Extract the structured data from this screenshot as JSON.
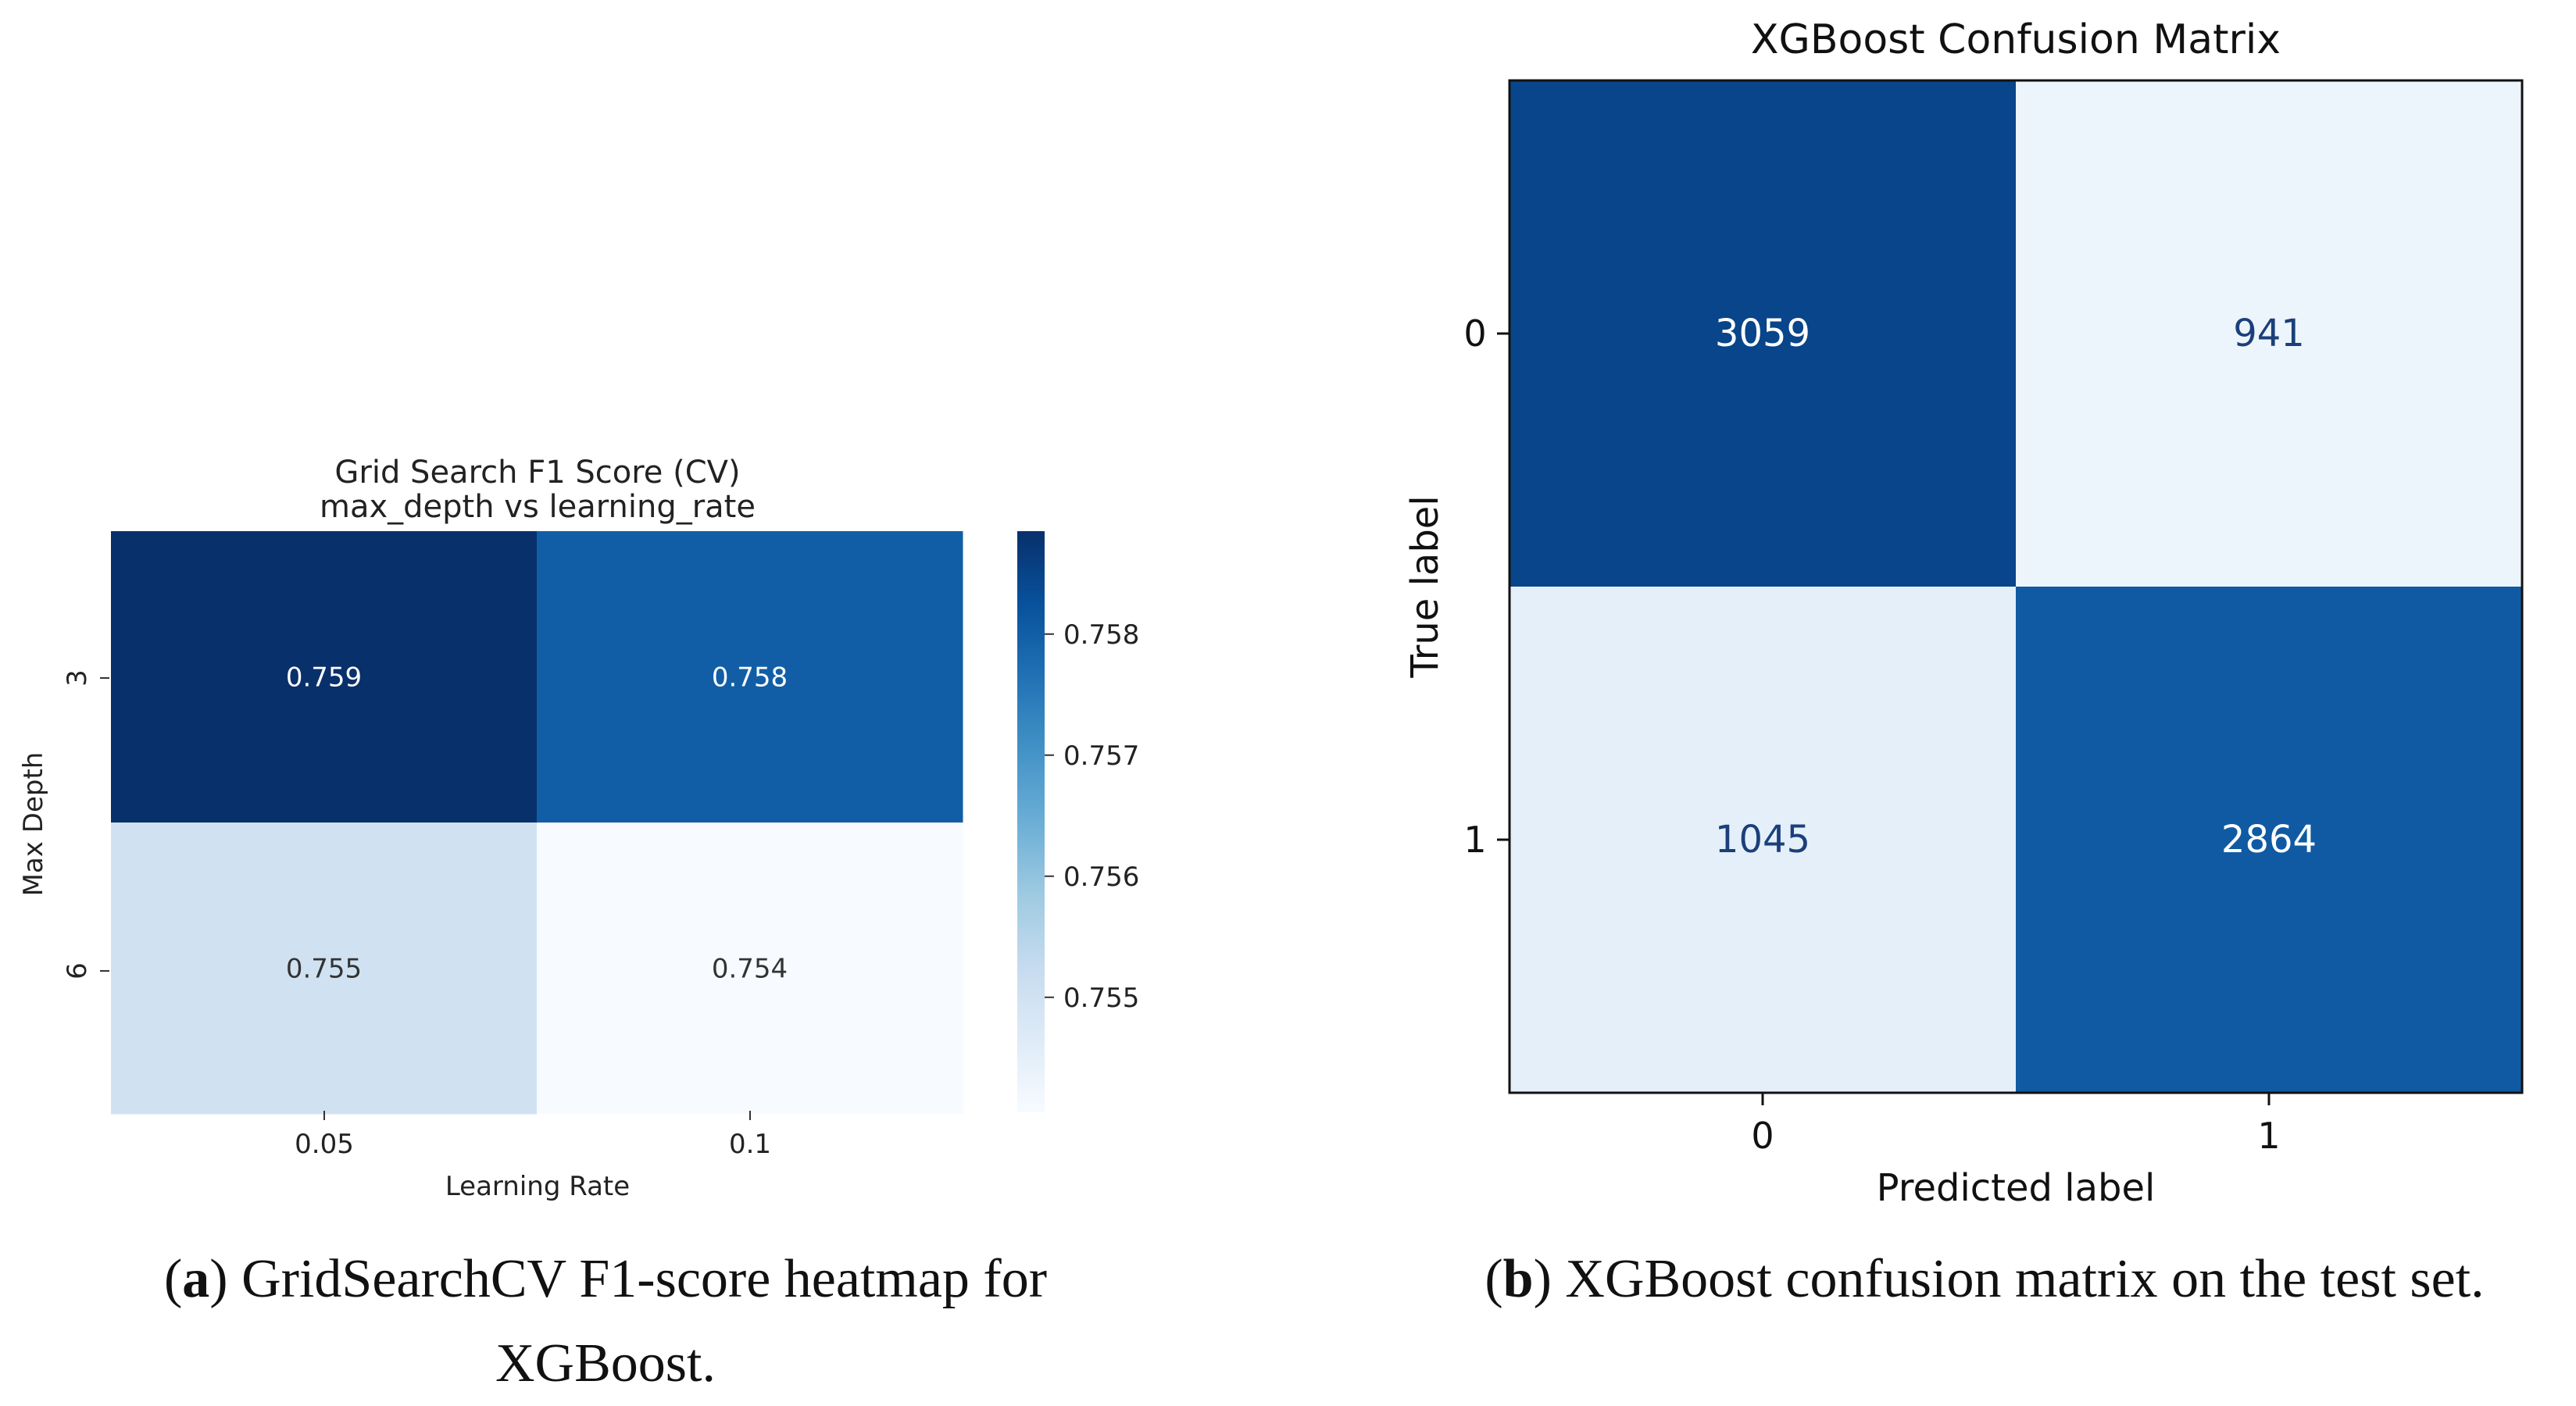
{
  "chart_data": [
    {
      "type": "heatmap",
      "title": "Grid Search F1 Score (CV)",
      "subtitle": "max_depth vs learning_rate",
      "xlabel": "Learning Rate",
      "ylabel": "Max Depth",
      "x_categories": [
        "0.05",
        "0.1"
      ],
      "y_categories": [
        "3",
        "6"
      ],
      "values": [
        [
          0.759,
          0.758
        ],
        [
          0.755,
          0.754
        ]
      ],
      "value_labels": [
        [
          "0.759",
          "0.758"
        ],
        [
          "0.755",
          "0.754"
        ]
      ],
      "colorbar": {
        "range": [
          0.75405,
          0.75885
        ],
        "ticks": [
          0.755,
          0.756,
          0.757,
          0.758
        ],
        "tick_labels": [
          "0.755",
          "0.756",
          "0.757",
          "0.758"
        ],
        "colormap": "Blues"
      }
    },
    {
      "type": "heatmap",
      "title": "XGBoost Confusion Matrix",
      "xlabel": "Predicted label",
      "ylabel": "True label",
      "x_categories": [
        "0",
        "1"
      ],
      "y_categories": [
        "0",
        "1"
      ],
      "values": [
        [
          3059,
          941
        ],
        [
          1045,
          2864
        ]
      ],
      "value_labels": [
        [
          "3059",
          "941"
        ],
        [
          "1045",
          "2864"
        ]
      ],
      "colormap": "Blues"
    }
  ],
  "captions": {
    "a": {
      "tag": "a",
      "line1": "GridSearchCV F1-score heatmap for",
      "line2": "XGBoost."
    },
    "b": {
      "tag": "b",
      "text": "XGBoost confusion matrix on the test set."
    }
  },
  "colors": {
    "blues_light": "#f7fbff",
    "blues_dark": "#08306b",
    "text_light": "#ffffff",
    "text_dark": "#333333",
    "cm_text_dark": "#1b3f7a"
  }
}
